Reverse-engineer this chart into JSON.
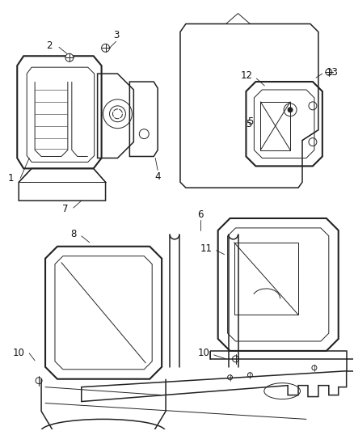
{
  "background_color": "#ffffff",
  "line_color": "#222222",
  "label_color": "#111111",
  "figsize": [
    4.38,
    5.33
  ],
  "dpi": 100
}
